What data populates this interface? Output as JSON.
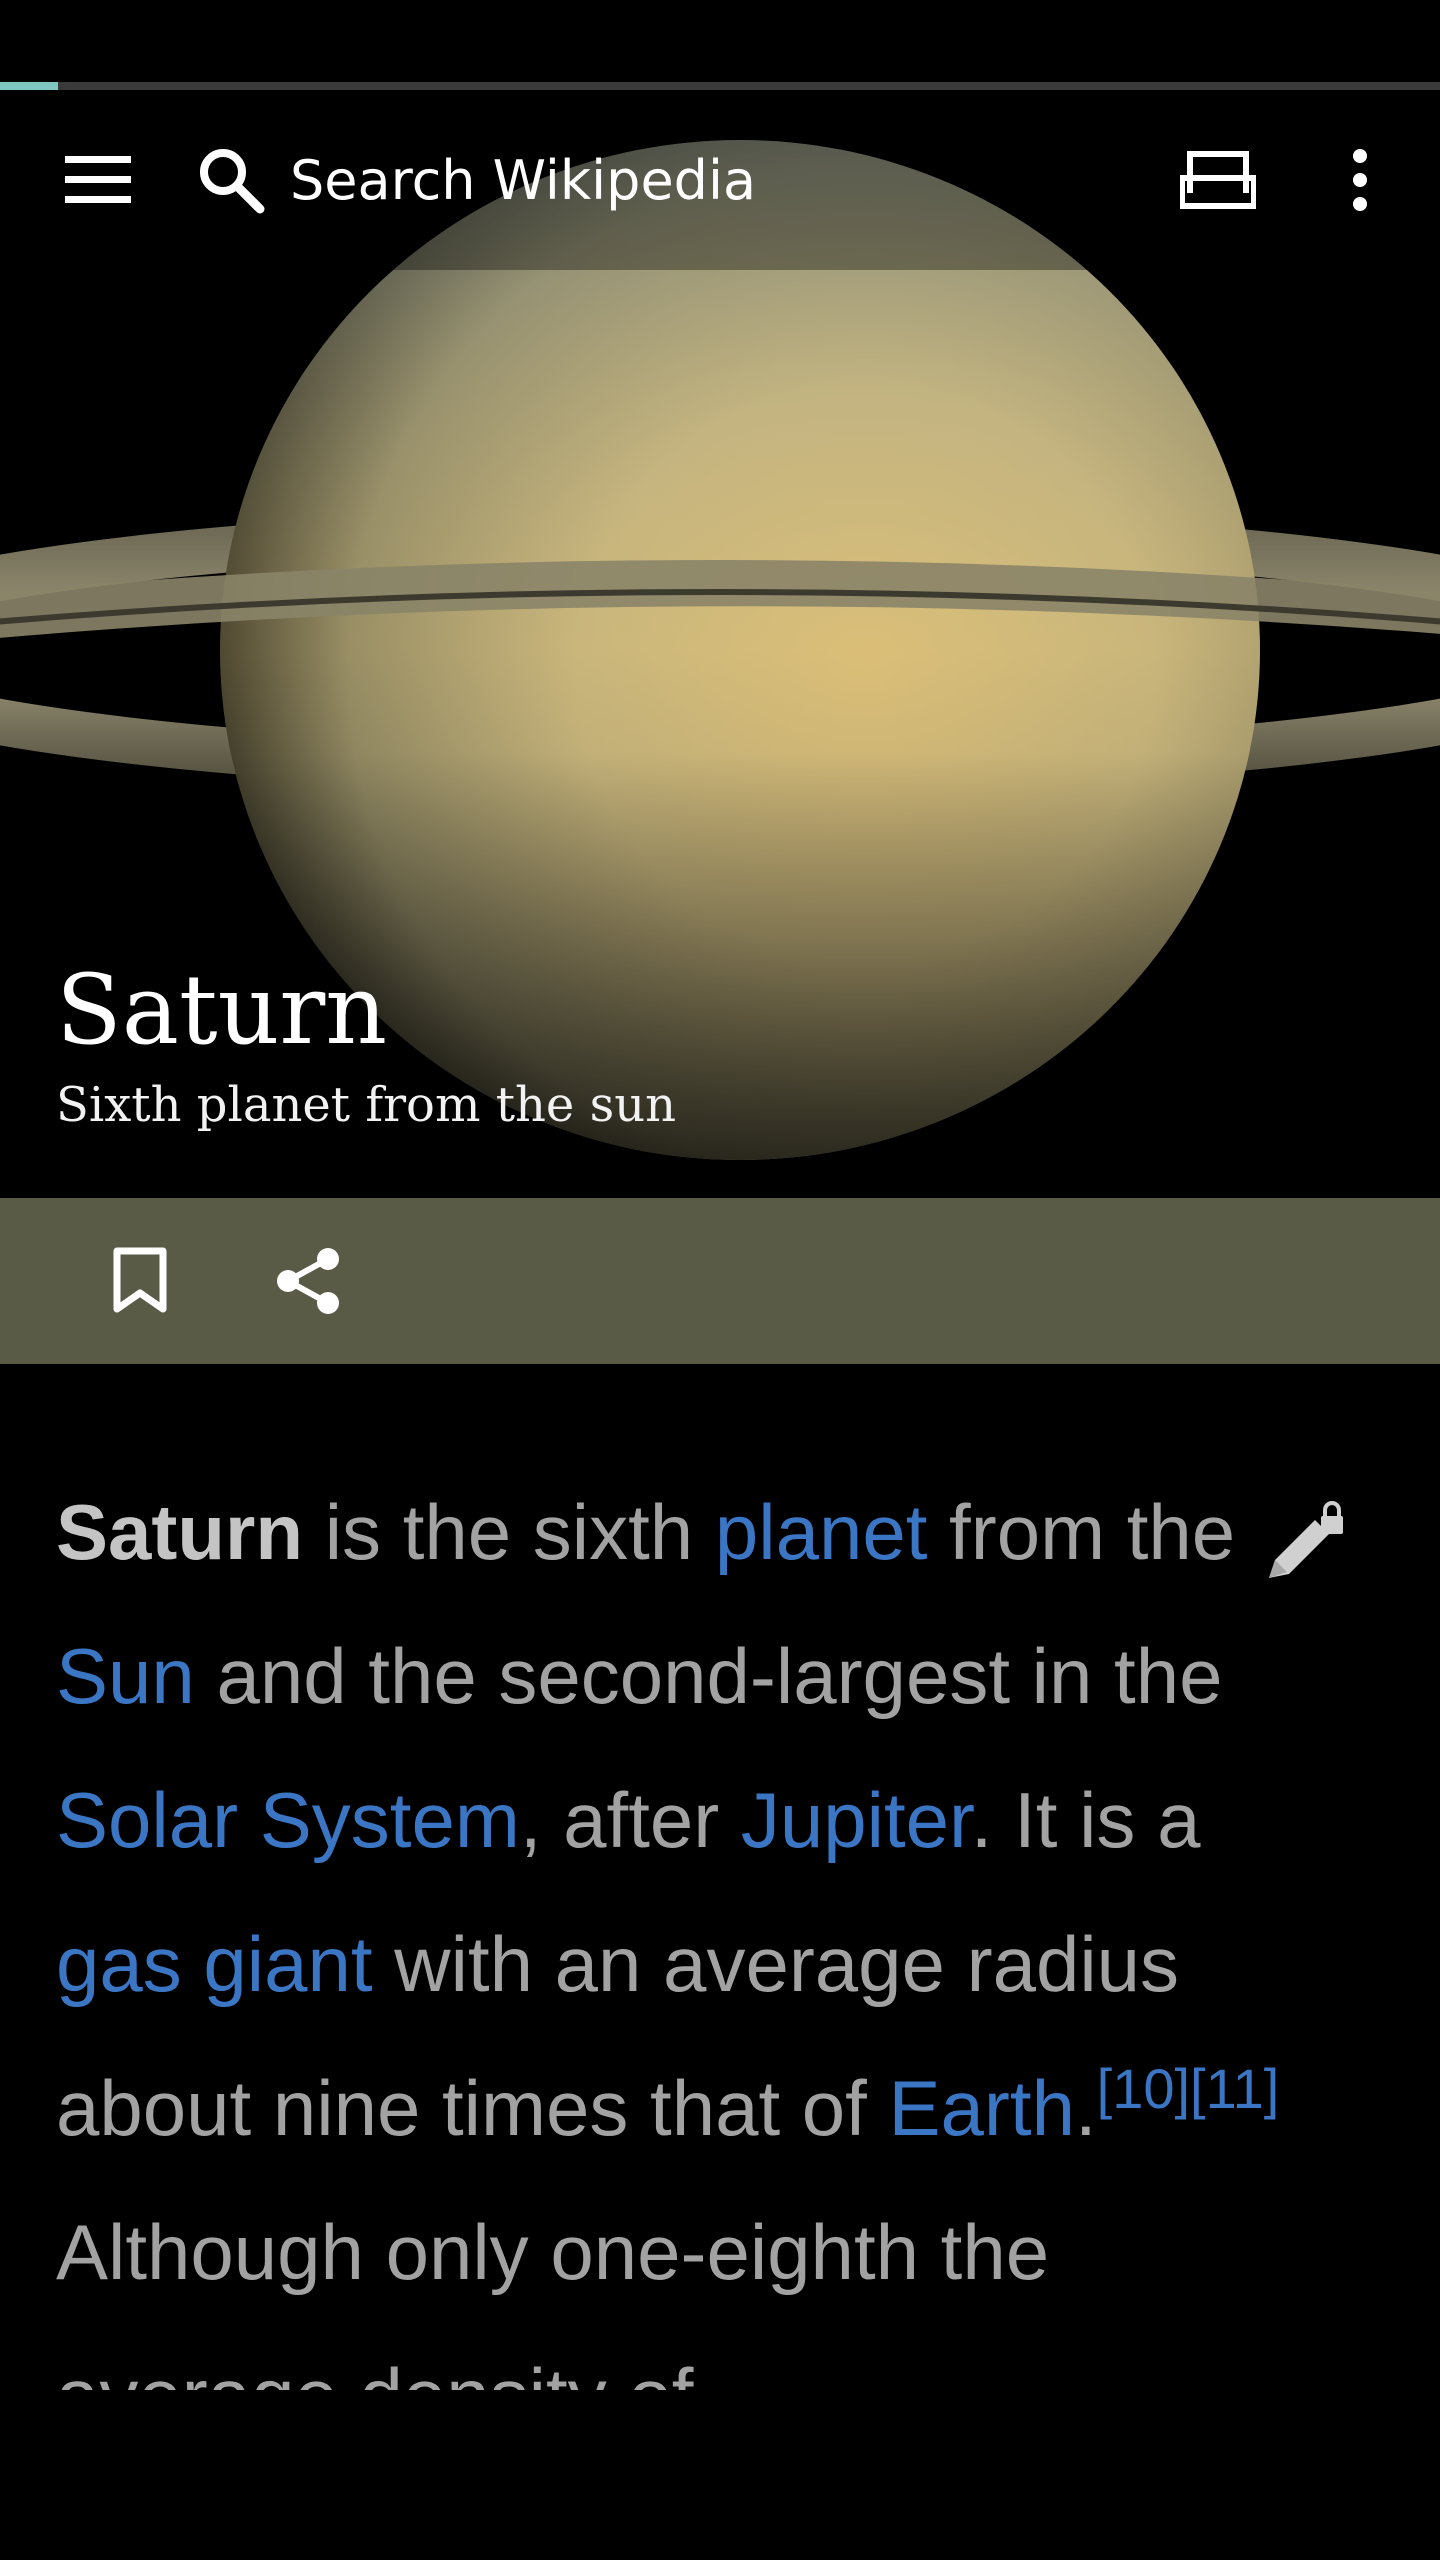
{
  "load_progress": 0.04,
  "toolbar": {
    "menu_icon": "menu-icon",
    "search_icon": "search-icon",
    "search_placeholder": "Search Wikipedia",
    "tabs_icon": "tabs-icon",
    "overflow_icon": "overflow-menu-icon"
  },
  "article": {
    "title": "Saturn",
    "description": "Sixth planet from the sun",
    "hero_image": "saturn-image"
  },
  "actions": {
    "bookmark_icon": "bookmark-icon",
    "share_icon": "share-icon",
    "edit_icon": "edit-lock-icon"
  },
  "body": {
    "bold_term": "Saturn",
    "t1": " is the sixth ",
    "link_planet": "planet",
    "t2": " from the ",
    "link_sun": "Sun",
    "t3": " and the second-largest in the ",
    "link_solar_system": "Solar System",
    "t4": ", after ",
    "link_jupiter": "Jupiter",
    "t5": ". It is a ",
    "link_gas_giant": "gas giant",
    "t6": " with an average radius about nine times that of ",
    "link_earth": "Earth",
    "t7": ".",
    "ref1": "[10]",
    "ref2": "[11]",
    "t8": " Although only one-eighth the average density of"
  },
  "colors": {
    "accent_link": "#3a76c4",
    "action_bar": "#5a5b47",
    "progress": "#7fc6c0"
  }
}
